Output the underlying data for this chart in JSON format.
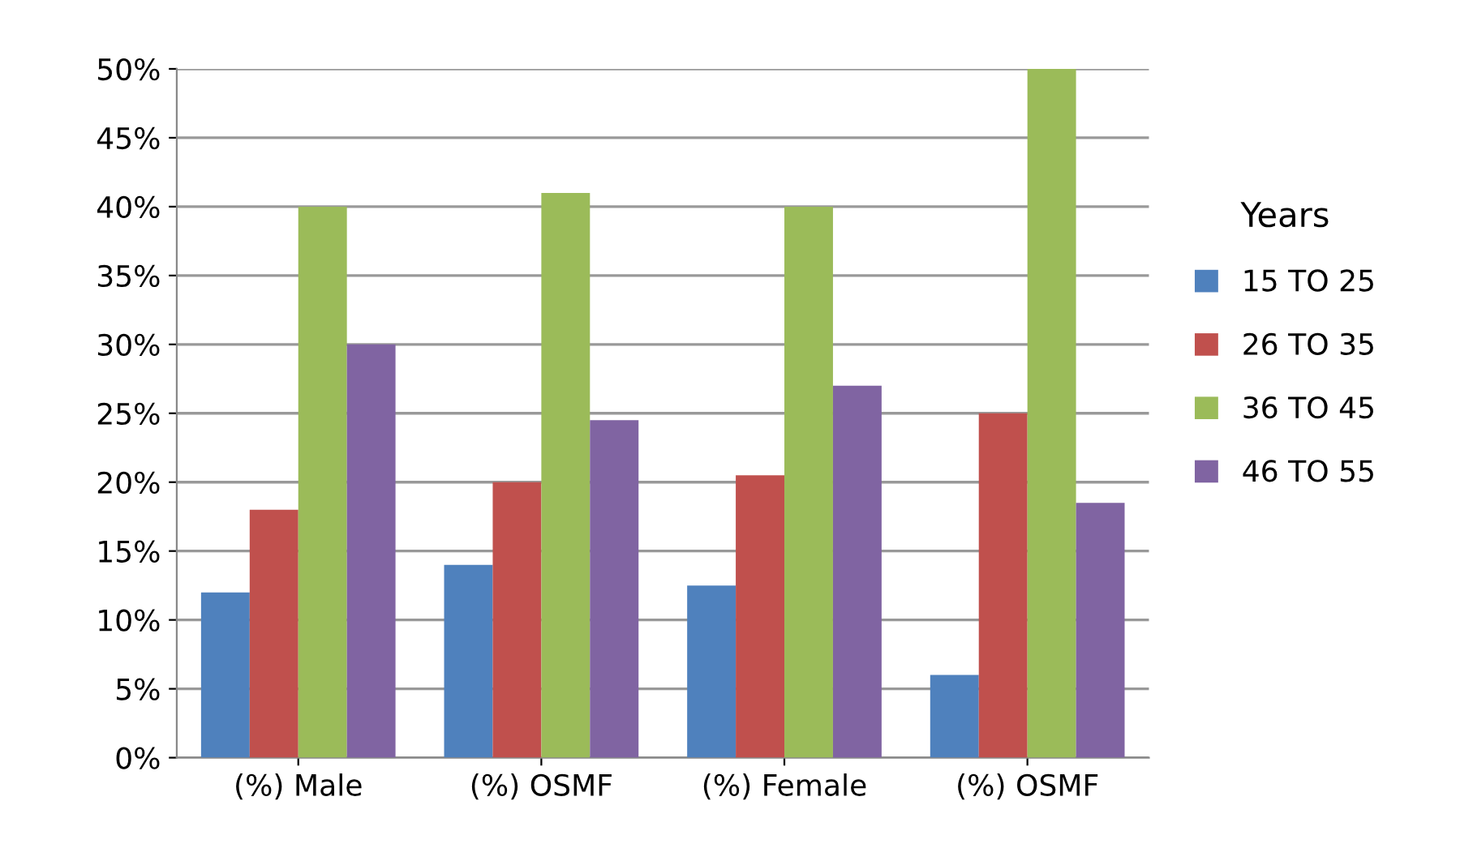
{
  "chart_data": {
    "type": "bar",
    "categories": [
      "(%) Male",
      "(%) OSMF",
      "(%) Female",
      "(%) OSMF"
    ],
    "legend_title": "Years",
    "legend": "right",
    "grid": "y",
    "ylim": [
      0,
      50
    ],
    "yticks": [
      {
        "value": 0,
        "label": "0%"
      },
      {
        "value": 5,
        "label": "5%"
      },
      {
        "value": 10,
        "label": "10%"
      },
      {
        "value": 15,
        "label": "15%"
      },
      {
        "value": 20,
        "label": "20%"
      },
      {
        "value": 25,
        "label": "25%"
      },
      {
        "value": 30,
        "label": "30%"
      },
      {
        "value": 35,
        "label": "35%"
      },
      {
        "value": 40,
        "label": "40%"
      },
      {
        "value": 45,
        "label": "45%"
      },
      {
        "value": 50,
        "label": "50%"
      }
    ],
    "series": [
      {
        "name": "15 TO 25",
        "color": "#4f81bd",
        "values": [
          12,
          14,
          12.5,
          6
        ]
      },
      {
        "name": "26 TO 35",
        "color": "#c0504d",
        "values": [
          18,
          20,
          20.5,
          25
        ]
      },
      {
        "name": "36 TO 45",
        "color": "#9bbb59",
        "values": [
          40,
          41,
          40,
          50
        ]
      },
      {
        "name": "46 TO 55",
        "color": "#8064a2",
        "values": [
          30,
          24.5,
          27,
          18.5
        ]
      }
    ]
  }
}
